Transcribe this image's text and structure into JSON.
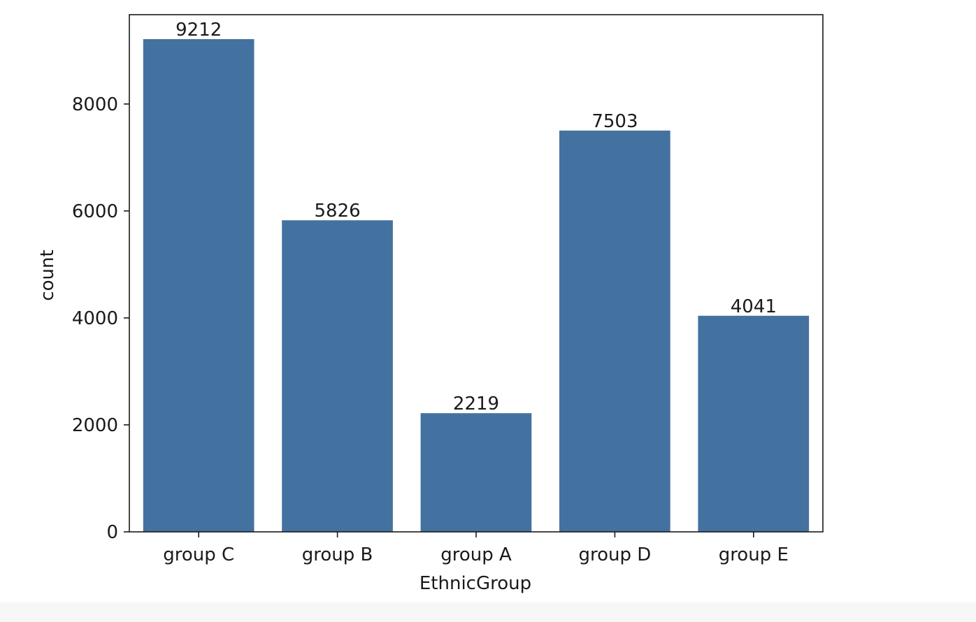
{
  "chart_data": {
    "type": "bar",
    "title": "",
    "xlabel": "EthnicGroup",
    "ylabel": "count",
    "categories": [
      "group C",
      "group B",
      "group A",
      "group D",
      "group E"
    ],
    "values": [
      9212,
      5826,
      2219,
      7503,
      4041
    ],
    "data_labels": [
      "9212",
      "5826",
      "2219",
      "7503",
      "4041"
    ],
    "ylim": [
      0,
      9670
    ],
    "yticks": [
      0,
      2000,
      4000,
      6000,
      8000
    ],
    "grid": false,
    "legend": "none",
    "bar_color": "#4472a0"
  }
}
